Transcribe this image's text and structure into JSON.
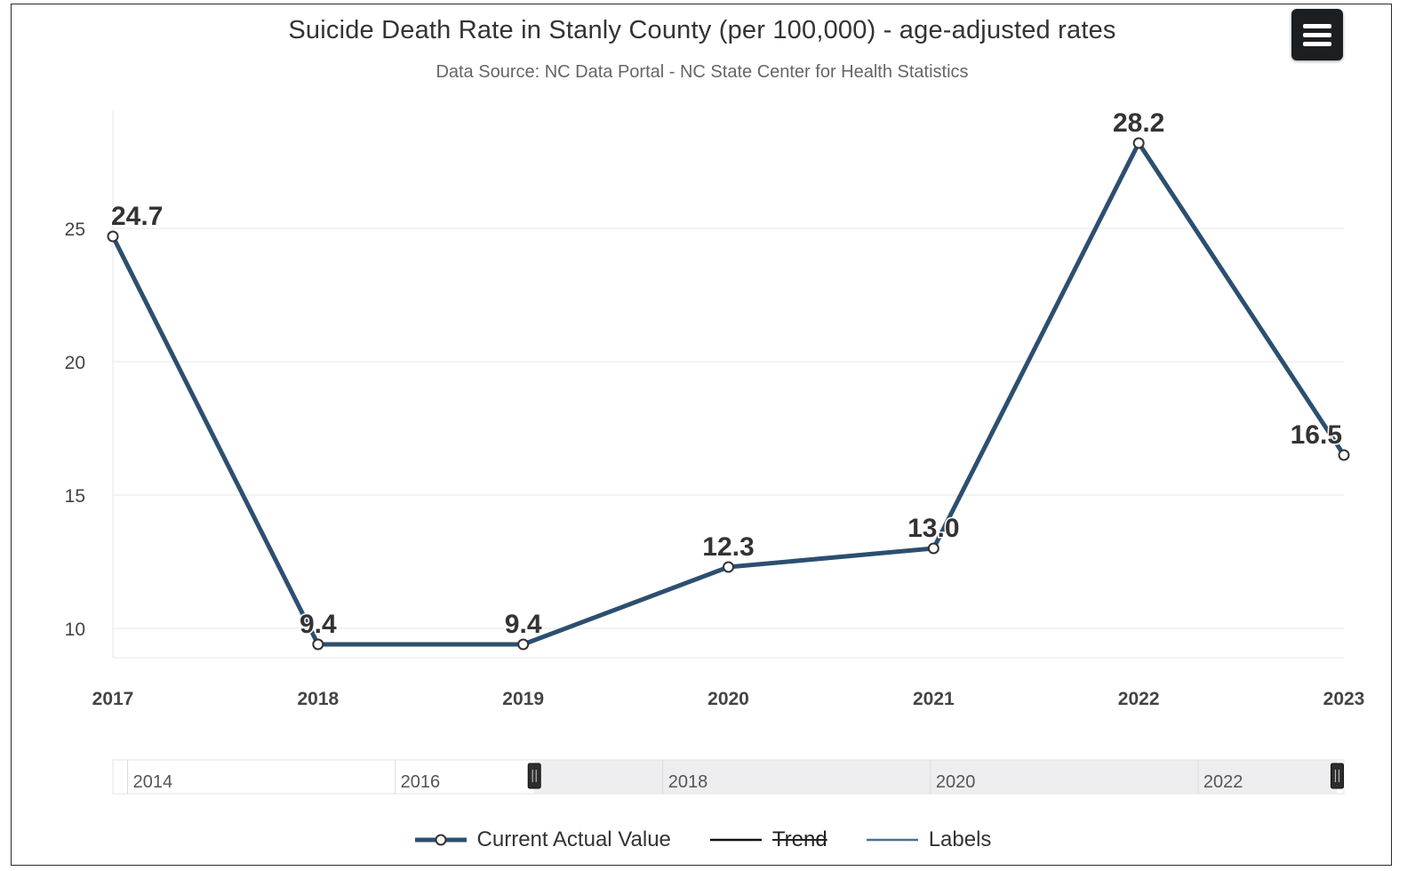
{
  "chart_data": {
    "type": "line",
    "title": "Suicide Death Rate in Stanly County (per 100,000) - age-adjusted rates",
    "subtitle": "Data Source: NC Data Portal - NC State Center for Health Statistics",
    "x": [
      "2017",
      "2018",
      "2019",
      "2020",
      "2021",
      "2022",
      "2023"
    ],
    "series": [
      {
        "name": "Current Actual Value",
        "values": [
          24.7,
          9.4,
          9.4,
          12.3,
          13.0,
          28.2,
          16.5
        ],
        "labels": [
          "24.7",
          "9.4",
          "9.4",
          "12.3",
          "13.0",
          "28.2",
          "16.5"
        ]
      }
    ],
    "yticks": [
      "25",
      "20",
      "15",
      "10"
    ],
    "ylim": [
      8.9,
      29.4
    ],
    "grid": true,
    "legend_position": "bottom-center",
    "navigator_ticks": [
      "2014",
      "2016",
      "2018",
      "2020",
      "2022"
    ],
    "navigator_range": [
      "2017",
      "2023"
    ]
  },
  "legend": {
    "items": [
      {
        "name": "current-actual-value",
        "label": "Current Actual Value",
        "color": "#2c4f70",
        "marker": "circle",
        "struck": false
      },
      {
        "name": "trend",
        "label": "Trend",
        "color": "#111111",
        "marker": "line",
        "struck": true
      },
      {
        "name": "labels",
        "label": "Labels",
        "color": "#4f6f91",
        "marker": "line",
        "struck": false
      }
    ]
  },
  "menu": {
    "icon": "hamburger-icon"
  },
  "colors": {
    "series": "#2c4f70",
    "grid": "#e6e6e6",
    "axis_text": "#444444",
    "label_text": "#333333"
  }
}
